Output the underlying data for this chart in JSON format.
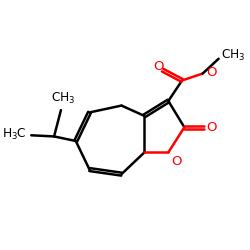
{
  "bg_color": "#ffffff",
  "bond_color": "#000000",
  "oxygen_color": "#ff0000",
  "line_width": 1.8,
  "figsize": [
    2.5,
    2.5
  ],
  "dpi": 100,
  "label_fontsize": 9.5,
  "xlim": [
    0,
    10
  ],
  "ylim": [
    1.5,
    9.5
  ]
}
